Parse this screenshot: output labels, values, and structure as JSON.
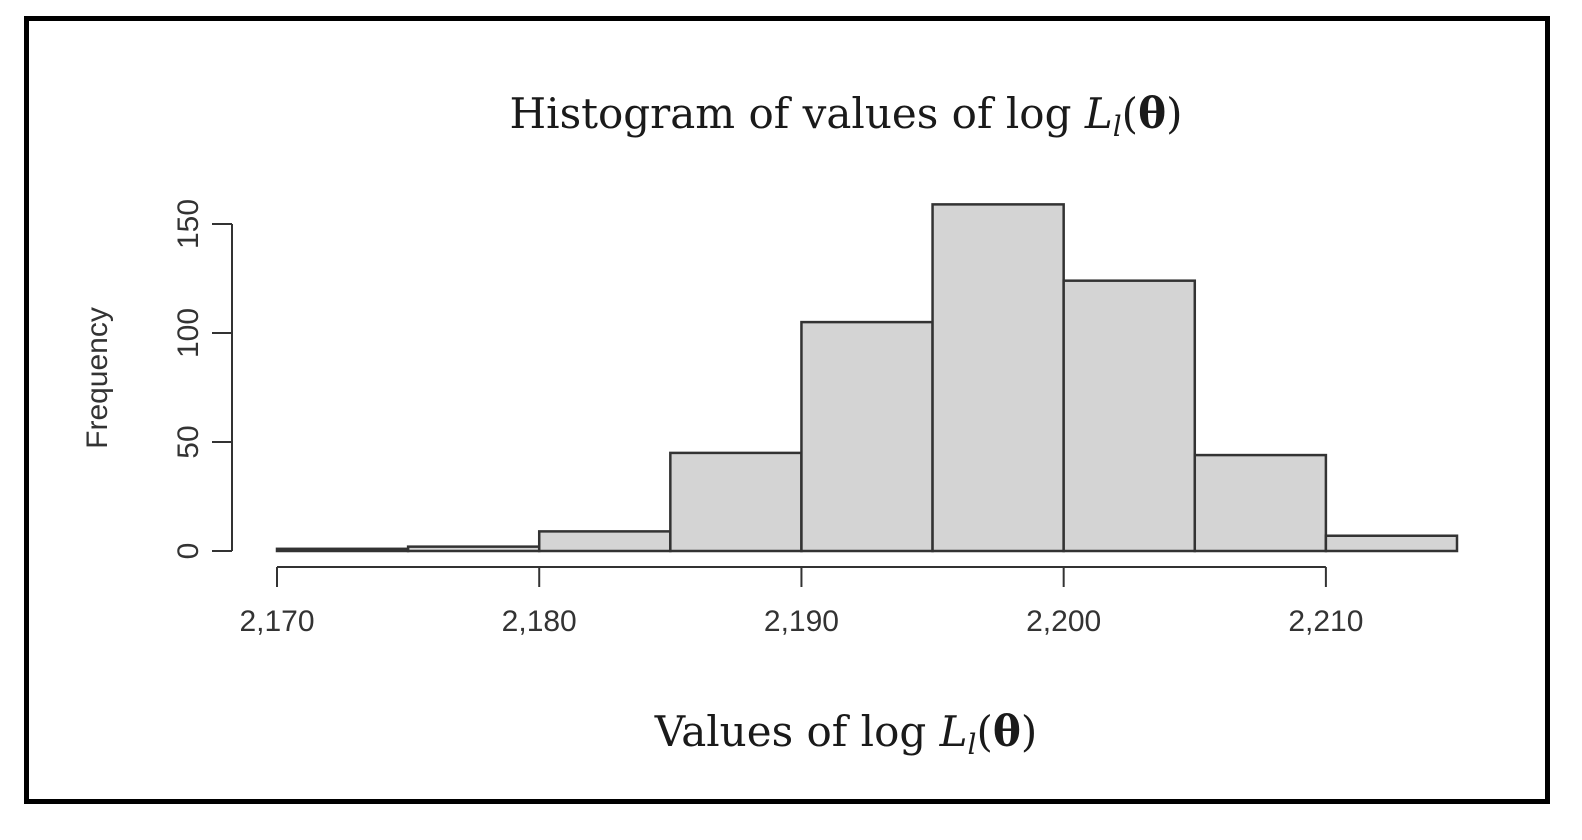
{
  "chart_data": {
    "type": "bar",
    "title": {
      "prefix": "Histogram of values of log ",
      "symbol": "L",
      "subscript": "l",
      "open": "(",
      "theta": "θ",
      "close": ")"
    },
    "xlabel": {
      "prefix": "Values of log ",
      "symbol": "L",
      "subscript": "l",
      "open": "(",
      "theta": "θ",
      "close": ")"
    },
    "ylabel": "Frequency",
    "bins": [
      {
        "x0": 2170,
        "x1": 2175,
        "count": 1
      },
      {
        "x0": 2175,
        "x1": 2180,
        "count": 2
      },
      {
        "x0": 2180,
        "x1": 2185,
        "count": 9
      },
      {
        "x0": 2185,
        "x1": 2190,
        "count": 45
      },
      {
        "x0": 2190,
        "x1": 2195,
        "count": 105
      },
      {
        "x0": 2195,
        "x1": 2200,
        "count": 159
      },
      {
        "x0": 2200,
        "x1": 2205,
        "count": 124
      },
      {
        "x0": 2205,
        "x1": 2210,
        "count": 44
      },
      {
        "x0": 2210,
        "x1": 2215,
        "count": 7
      }
    ],
    "xticks": [
      {
        "value": 2170,
        "label": "2,170"
      },
      {
        "value": 2180,
        "label": "2,180"
      },
      {
        "value": 2190,
        "label": "2,190"
      },
      {
        "value": 2200,
        "label": "2,200"
      },
      {
        "value": 2210,
        "label": "2,210"
      }
    ],
    "yticks": [
      {
        "value": 0,
        "label": "0"
      },
      {
        "value": 50,
        "label": "50"
      },
      {
        "value": 100,
        "label": "100"
      },
      {
        "value": 150,
        "label": "150"
      }
    ],
    "xlim": [
      2170,
      2215
    ],
    "ylim": [
      0,
      150
    ],
    "grid": false,
    "bar_fill": "#d4d4d4",
    "bar_stroke": "#333333"
  }
}
